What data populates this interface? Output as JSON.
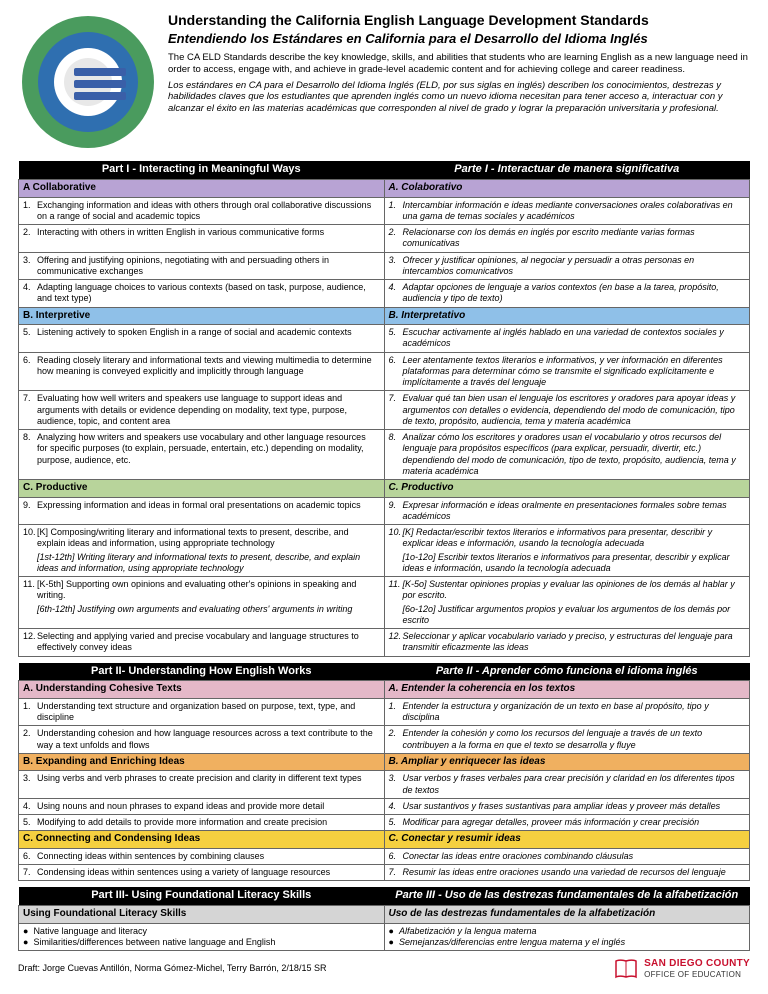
{
  "colors": {
    "purple": "#b8a3d4",
    "blue": "#8fc0e8",
    "green": "#b8d49b",
    "pink": "#e4b8c8",
    "orange": "#f0b060",
    "yellow": "#f5d040",
    "gray": "#d5d5d5"
  },
  "title_en": "Understanding the California English Language Development Standards",
  "title_es": "Entendiendo los Estándares en California para el Desarrollo del Idioma Inglés",
  "intro_en": "The CA ELD Standards describe the key knowledge, skills, and abilities that students who are learning English as a new language need in order to access, engage with, and achieve in grade-level academic content and for achieving college and career readiness.",
  "intro_es": "Los estándares en CA para el Desarrollo del Idioma Inglés (ELD, por sus siglas en inglés) describen los conocimientos, destrezas y habilidades claves que los estudiantes que aprenden inglés como un nuevo idioma necesitan para tener acceso a, interactuar con y alcanzar el éxito en las materias académicas que corresponden al nivel de grado y lograr la preparación universitaria y profesional.",
  "part1_en": "Part I - Interacting in Meaningful Ways",
  "part1_es": "Parte I - Interactuar de manera significativa",
  "sec_a_en": "A Collaborative",
  "sec_a_es": "A. Colaborativo",
  "a_rows": [
    {
      "n": "1.",
      "en": "Exchanging information and ideas with others through oral collaborative discussions on a range of social and academic topics",
      "es": "Intercambiar información e ideas mediante conversaciones orales colaborativas en una gama de temas sociales y académicos"
    },
    {
      "n": "2.",
      "en": "Interacting with others in written English in various communicative forms",
      "es": "Relacionarse con los demás en inglés por escrito mediante varias formas comunicativas"
    },
    {
      "n": "3.",
      "en": "Offering and justifying opinions, negotiating with and persuading others in communicative exchanges",
      "es": "Ofrecer y justificar opiniones, al negociar y persuadir a otras personas en intercambios comunicativos"
    },
    {
      "n": "4.",
      "en": "Adapting language choices to various contexts (based on task, purpose, audience, and text type)",
      "es": "Adaptar opciones de lenguaje a varios contextos (en base a la tarea, propósito, audiencia y tipo de texto)"
    }
  ],
  "sec_b_en": "B. Interpretive",
  "sec_b_es": "B. Interpretativo",
  "b_rows": [
    {
      "n": "5.",
      "en": "Listening actively to spoken English in a range of social and academic contexts",
      "es": "Escuchar activamente al inglés hablado en una variedad de contextos sociales y académicos"
    },
    {
      "n": "6.",
      "en": "Reading closely literary and informational texts and viewing multimedia to determine how meaning is conveyed explicitly and implicitly through language",
      "es": "Leer atentamente textos literarios e informativos, y ver información en diferentes plataformas para determinar cómo se transmite el significado explícitamente e implícitamente a través del lenguaje"
    },
    {
      "n": "7.",
      "en": "Evaluating how well writers and speakers use language to support ideas and arguments with details or evidence depending on modality, text type, purpose, audience, topic, and content area",
      "es": "Evaluar qué tan bien usan el lenguaje los escritores y oradores para apoyar ideas y argumentos con detalles o evidencia, dependiendo del modo de comunicación, tipo de texto, propósito, audiencia, tema y materia académica"
    },
    {
      "n": "8.",
      "en": "Analyzing how writers and speakers use vocabulary and other language resources for specific purposes (to explain, persuade, entertain, etc.) depending on modality, purpose, audience, etc.",
      "es": "Analizar cómo los escritores y oradores usan el vocabulario y otros recursos del lenguaje para propósitos específicos (para explicar, persuadir, divertir, etc.) dependiendo del modo de comunicación, tipo de texto, propósito, audiencia, tema y materia académica"
    }
  ],
  "sec_c_en": "C. Productive",
  "sec_c_es": "C. Productivo",
  "c_rows": [
    {
      "n": "9.",
      "en": "Expressing information and ideas in formal oral presentations on academic topics",
      "es": "Expresar información e ideas oralmente en presentaciones formales sobre temas académicos"
    },
    {
      "n": "10.",
      "en": "[K] Composing/writing literary and informational texts to present, describe, and explain ideas and information, using appropriate technology",
      "en2": "[1st-12th] Writing literary and informational texts to present, describe, and explain ideas and information, using appropriate technology",
      "es": "[K] Redactar/escribir textos literarios e informativos para presentar, describir y explicar ideas e información, usando la tecnología adecuada",
      "es2": "[1o-12o] Escribir textos literarios e informativos para presentar, describir y explicar ideas e información, usando la tecnología adecuada"
    },
    {
      "n": "11.",
      "en": "[K-5th] Supporting own opinions and evaluating other's opinions in speaking and writing.",
      "en2": "[6th-12th] Justifying own arguments and evaluating others' arguments in writing",
      "es": "[K-5o]  Sustentar opiniones propias y evaluar las opiniones de los demás al hablar y por escrito.",
      "es2": "[6o-12o] Justificar argumentos propios y evaluar los argumentos de los demás por escrito"
    },
    {
      "n": "12.",
      "en": "Selecting and applying varied and precise vocabulary and language structures to effectively convey ideas",
      "es": "Seleccionar y aplicar vocabulario variado y preciso, y estructuras del lenguaje para transmitir eficazmente las ideas"
    }
  ],
  "part2_en": "Part II- Understanding How English Works",
  "part2_es": "Parte II - Aprender cómo funciona el idioma inglés",
  "sec2a_en": "A. Understanding Cohesive Texts",
  "sec2a_es": "A. Entender la coherencia en los textos",
  "rows2a": [
    {
      "n": "1.",
      "en": "Understanding text structure and organization based on purpose, text, type, and discipline",
      "es": "Entender la estructura y organización de un texto en base al  propósito, tipo y disciplina"
    },
    {
      "n": "2.",
      "en": "Understanding cohesion and how language resources across a text contribute to the way a text unfolds and flows",
      "es": "Entender la cohesión y como los recursos del lenguaje a través de un texto contribuyen a la forma en que el texto se desarrolla y fluye"
    }
  ],
  "sec2b_en": "B. Expanding and Enriching Ideas",
  "sec2b_es": "B. Ampliar y enriquecer las ideas",
  "rows2b": [
    {
      "n": "3.",
      "en": "Using verbs and verb phrases to create precision and clarity in different text types",
      "es": "Usar verbos y frases verbales para crear precisión y claridad en los diferentes tipos de textos"
    },
    {
      "n": "4.",
      "en": "Using nouns and noun phrases to expand ideas and provide more detail",
      "es": "Usar sustantivos y frases sustantivas para ampliar ideas y proveer más detalles"
    },
    {
      "n": "5.",
      "en": "Modifying to add details to provide more information and create precision",
      "es": "Modificar para agregar detalles, proveer más información y crear precisión"
    }
  ],
  "sec2c_en": "C. Connecting and Condensing Ideas",
  "sec2c_es": "C. Conectar y resumir ideas",
  "rows2c": [
    {
      "n": "6.",
      "en": "Connecting ideas within sentences by combining clauses",
      "es": "Conectar las ideas entre oraciones combinando cláusulas"
    },
    {
      "n": "7.",
      "en": "Condensing ideas within sentences using a variety of language resources",
      "es": "Resumir las  ideas entre oraciones usando una variedad de recursos del lenguaje"
    }
  ],
  "part3_en": "Part III- Using Foundational Literacy Skills",
  "part3_es": "Parte III - Uso de las destrezas fundamentales de la alfabetización",
  "sec3_en": "Using Foundational Literacy Skills",
  "sec3_es": "Uso de las destrezas fundamentales de la alfabetización",
  "rows3_en1": "Native language and literacy",
  "rows3_en2": "Similarities/differences between native language and English",
  "rows3_es1": "Alfabetización y la lengua materna",
  "rows3_es2": "Semejanzas/diferencias entre lengua materna y el inglés",
  "footer_credit": "Draft: Jorge Cuevas Antillón, Norma Gómez-Michel, Terry Barrón,  2/18/15  SR",
  "logo_l1": "SAN DIEGO COUNTY",
  "logo_l2": "OFFICE OF EDUCATION"
}
